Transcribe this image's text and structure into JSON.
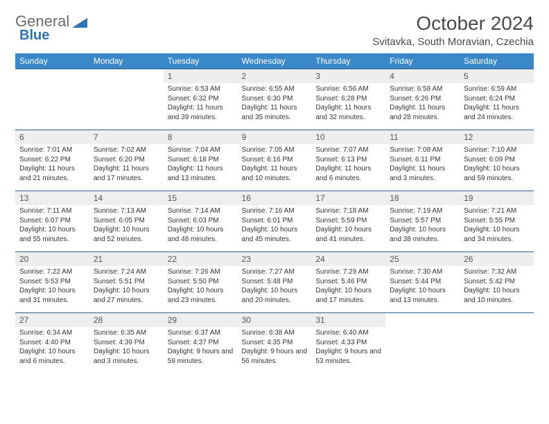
{
  "logo": {
    "text1": "General",
    "text2": "Blue"
  },
  "title": "October 2024",
  "location": "Svitavka, South Moravian, Czechia",
  "colors": {
    "header_bg": "#3a88c7",
    "row_border": "#2b5f8a",
    "daynum_bg": "#eeeeee",
    "logo_blue": "#2b73b7"
  },
  "weekdays": [
    "Sunday",
    "Monday",
    "Tuesday",
    "Wednesday",
    "Thursday",
    "Friday",
    "Saturday"
  ],
  "weeks": [
    [
      {
        "empty": true
      },
      {
        "empty": true
      },
      {
        "num": "1",
        "sunrise": "Sunrise: 6:53 AM",
        "sunset": "Sunset: 6:32 PM",
        "daylight": "Daylight: 11 hours and 39 minutes."
      },
      {
        "num": "2",
        "sunrise": "Sunrise: 6:55 AM",
        "sunset": "Sunset: 6:30 PM",
        "daylight": "Daylight: 11 hours and 35 minutes."
      },
      {
        "num": "3",
        "sunrise": "Sunrise: 6:56 AM",
        "sunset": "Sunset: 6:28 PM",
        "daylight": "Daylight: 11 hours and 32 minutes."
      },
      {
        "num": "4",
        "sunrise": "Sunrise: 6:58 AM",
        "sunset": "Sunset: 6:26 PM",
        "daylight": "Daylight: 11 hours and 28 minutes."
      },
      {
        "num": "5",
        "sunrise": "Sunrise: 6:59 AM",
        "sunset": "Sunset: 6:24 PM",
        "daylight": "Daylight: 11 hours and 24 minutes."
      }
    ],
    [
      {
        "num": "6",
        "sunrise": "Sunrise: 7:01 AM",
        "sunset": "Sunset: 6:22 PM",
        "daylight": "Daylight: 11 hours and 21 minutes."
      },
      {
        "num": "7",
        "sunrise": "Sunrise: 7:02 AM",
        "sunset": "Sunset: 6:20 PM",
        "daylight": "Daylight: 11 hours and 17 minutes."
      },
      {
        "num": "8",
        "sunrise": "Sunrise: 7:04 AM",
        "sunset": "Sunset: 6:18 PM",
        "daylight": "Daylight: 11 hours and 13 minutes."
      },
      {
        "num": "9",
        "sunrise": "Sunrise: 7:05 AM",
        "sunset": "Sunset: 6:16 PM",
        "daylight": "Daylight: 11 hours and 10 minutes."
      },
      {
        "num": "10",
        "sunrise": "Sunrise: 7:07 AM",
        "sunset": "Sunset: 6:13 PM",
        "daylight": "Daylight: 11 hours and 6 minutes."
      },
      {
        "num": "11",
        "sunrise": "Sunrise: 7:08 AM",
        "sunset": "Sunset: 6:11 PM",
        "daylight": "Daylight: 11 hours and 3 minutes."
      },
      {
        "num": "12",
        "sunrise": "Sunrise: 7:10 AM",
        "sunset": "Sunset: 6:09 PM",
        "daylight": "Daylight: 10 hours and 59 minutes."
      }
    ],
    [
      {
        "num": "13",
        "sunrise": "Sunrise: 7:11 AM",
        "sunset": "Sunset: 6:07 PM",
        "daylight": "Daylight: 10 hours and 55 minutes."
      },
      {
        "num": "14",
        "sunrise": "Sunrise: 7:13 AM",
        "sunset": "Sunset: 6:05 PM",
        "daylight": "Daylight: 10 hours and 52 minutes."
      },
      {
        "num": "15",
        "sunrise": "Sunrise: 7:14 AM",
        "sunset": "Sunset: 6:03 PM",
        "daylight": "Daylight: 10 hours and 48 minutes."
      },
      {
        "num": "16",
        "sunrise": "Sunrise: 7:16 AM",
        "sunset": "Sunset: 6:01 PM",
        "daylight": "Daylight: 10 hours and 45 minutes."
      },
      {
        "num": "17",
        "sunrise": "Sunrise: 7:18 AM",
        "sunset": "Sunset: 5:59 PM",
        "daylight": "Daylight: 10 hours and 41 minutes."
      },
      {
        "num": "18",
        "sunrise": "Sunrise: 7:19 AM",
        "sunset": "Sunset: 5:57 PM",
        "daylight": "Daylight: 10 hours and 38 minutes."
      },
      {
        "num": "19",
        "sunrise": "Sunrise: 7:21 AM",
        "sunset": "Sunset: 5:55 PM",
        "daylight": "Daylight: 10 hours and 34 minutes."
      }
    ],
    [
      {
        "num": "20",
        "sunrise": "Sunrise: 7:22 AM",
        "sunset": "Sunset: 5:53 PM",
        "daylight": "Daylight: 10 hours and 31 minutes."
      },
      {
        "num": "21",
        "sunrise": "Sunrise: 7:24 AM",
        "sunset": "Sunset: 5:51 PM",
        "daylight": "Daylight: 10 hours and 27 minutes."
      },
      {
        "num": "22",
        "sunrise": "Sunrise: 7:26 AM",
        "sunset": "Sunset: 5:50 PM",
        "daylight": "Daylight: 10 hours and 23 minutes."
      },
      {
        "num": "23",
        "sunrise": "Sunrise: 7:27 AM",
        "sunset": "Sunset: 5:48 PM",
        "daylight": "Daylight: 10 hours and 20 minutes."
      },
      {
        "num": "24",
        "sunrise": "Sunrise: 7:29 AM",
        "sunset": "Sunset: 5:46 PM",
        "daylight": "Daylight: 10 hours and 17 minutes."
      },
      {
        "num": "25",
        "sunrise": "Sunrise: 7:30 AM",
        "sunset": "Sunset: 5:44 PM",
        "daylight": "Daylight: 10 hours and 13 minutes."
      },
      {
        "num": "26",
        "sunrise": "Sunrise: 7:32 AM",
        "sunset": "Sunset: 5:42 PM",
        "daylight": "Daylight: 10 hours and 10 minutes."
      }
    ],
    [
      {
        "num": "27",
        "sunrise": "Sunrise: 6:34 AM",
        "sunset": "Sunset: 4:40 PM",
        "daylight": "Daylight: 10 hours and 6 minutes."
      },
      {
        "num": "28",
        "sunrise": "Sunrise: 6:35 AM",
        "sunset": "Sunset: 4:39 PM",
        "daylight": "Daylight: 10 hours and 3 minutes."
      },
      {
        "num": "29",
        "sunrise": "Sunrise: 6:37 AM",
        "sunset": "Sunset: 4:37 PM",
        "daylight": "Daylight: 9 hours and 59 minutes."
      },
      {
        "num": "30",
        "sunrise": "Sunrise: 6:38 AM",
        "sunset": "Sunset: 4:35 PM",
        "daylight": "Daylight: 9 hours and 56 minutes."
      },
      {
        "num": "31",
        "sunrise": "Sunrise: 6:40 AM",
        "sunset": "Sunset: 4:33 PM",
        "daylight": "Daylight: 9 hours and 53 minutes."
      },
      {
        "empty": true
      },
      {
        "empty": true
      }
    ]
  ]
}
